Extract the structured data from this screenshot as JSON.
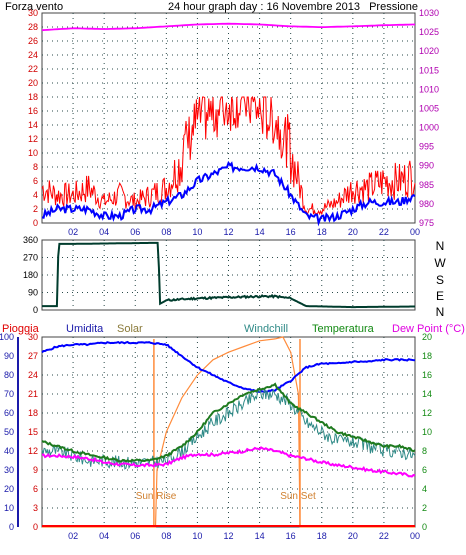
{
  "colors": {
    "wind": "#ff0000",
    "gust": "#ff0000",
    "avg": "#0000ff",
    "pressure": "#ff00ff",
    "direction": "#003c2d",
    "humidity": "#0000ff",
    "solar": "#ff8c3c",
    "windchill": "#2f8a87",
    "temperature": "#1e7a1e",
    "dewpoint": "#ff00ff",
    "rain": "#ff0000",
    "grid": "#2a4a4a",
    "axis_blue": "#1a1aaa",
    "axis_purple": "#b000b0",
    "axis_red": "#d00000",
    "axis_green": "#138a13",
    "time_axis": "#1a1aaa"
  },
  "panel1": {
    "left_title": "Forza vento",
    "center_title": "24 hour graph day : 16 Novembre 2013",
    "right_title": "Pressione",
    "left_ticks": [
      "0",
      "2",
      "4",
      "6",
      "8",
      "10",
      "12",
      "14",
      "16",
      "18",
      "20",
      "22",
      "24",
      "26",
      "28",
      "30"
    ],
    "right_ticks": [
      "975",
      "980",
      "985",
      "990",
      "995",
      "1000",
      "1005",
      "1010",
      "1015",
      "1020",
      "1025",
      "1030"
    ]
  },
  "panel2": {
    "left_ticks": [
      "0",
      "90",
      "180",
      "270",
      "360"
    ],
    "compass": [
      "N",
      "W",
      "S",
      "E",
      "N"
    ]
  },
  "panel3": {
    "legend": {
      "pioggia": "Pioggia",
      "umidita": "Umidita",
      "solar": "Solar",
      "windchill": "Windchill",
      "temperatura": "Temperatura",
      "dewpoint": "Dew Point (°C)"
    },
    "left_humidity_ticks": [
      "0",
      "10",
      "20",
      "30",
      "40",
      "50",
      "60",
      "70",
      "80",
      "90",
      "100"
    ],
    "left_rain_ticks": [
      "0",
      "3",
      "6",
      "9",
      "12",
      "15",
      "18",
      "21",
      "24",
      "27",
      "30"
    ],
    "right_ticks": [
      "0",
      "2",
      "4",
      "6",
      "8",
      "10",
      "12",
      "14",
      "16",
      "18",
      "20"
    ],
    "sunrise": "Sun Rise",
    "sunset": "Sun Set"
  },
  "time_ticks": [
    "02",
    "04",
    "06",
    "08",
    "10",
    "12",
    "14",
    "16",
    "18",
    "20",
    "22",
    "00"
  ],
  "chart_data": [
    {
      "type": "line",
      "title": "24 hour graph day : 16 Novembre 2013",
      "ylabel": "Forza vento",
      "y2label": "Pressione",
      "xlim": [
        0,
        24
      ],
      "ylim": [
        0,
        30
      ],
      "y2lim": [
        975,
        1030
      ],
      "series": [
        {
          "name": "gust",
          "x": [
            0,
            1,
            2,
            3,
            4,
            5,
            6,
            7,
            8,
            9,
            10,
            11,
            12,
            13,
            14,
            15,
            16,
            17,
            18,
            19,
            20,
            21,
            22,
            23,
            24
          ],
          "values": [
            5,
            4,
            4,
            5,
            3,
            4,
            3,
            4,
            5,
            9,
            14,
            15,
            16,
            17,
            15,
            14,
            10,
            2,
            2,
            3,
            5,
            5,
            6,
            6,
            7
          ]
        },
        {
          "name": "avg",
          "x": [
            0,
            1,
            2,
            3,
            4,
            5,
            6,
            7,
            8,
            9,
            10,
            11,
            12,
            13,
            14,
            15,
            16,
            17,
            18,
            19,
            20,
            21,
            22,
            23,
            24
          ],
          "values": [
            1,
            2,
            2,
            2,
            1,
            1,
            2,
            2,
            3,
            4,
            6,
            7,
            8,
            8,
            8,
            7,
            4,
            1,
            0.5,
            1,
            2,
            3,
            3,
            3,
            4
          ]
        },
        {
          "name": "Pressione",
          "x": [
            0,
            2,
            4,
            6,
            8,
            10,
            12,
            14,
            16,
            18,
            20,
            22,
            24
          ],
          "values": [
            1025.5,
            1026,
            1025.8,
            1026,
            1026.5,
            1027,
            1027.2,
            1027,
            1026.5,
            1026.3,
            1026.5,
            1026.8,
            1027
          ]
        }
      ]
    },
    {
      "type": "line",
      "ylabel": "wind direction",
      "xlim": [
        0,
        24
      ],
      "ylim": [
        0,
        360
      ],
      "series": [
        {
          "name": "direction",
          "x": [
            0,
            1,
            1.05,
            2,
            4,
            7,
            7.5,
            7.55,
            8,
            10,
            12,
            14,
            15,
            16,
            17,
            20,
            24
          ],
          "values": [
            20,
            20,
            340,
            340,
            342,
            345,
            345,
            30,
            50,
            60,
            65,
            70,
            70,
            60,
            20,
            15,
            18
          ]
        }
      ]
    },
    {
      "type": "line",
      "xlim": [
        0,
        24
      ],
      "ylim": [
        0,
        100
      ],
      "y2lim": [
        0,
        20
      ],
      "series": [
        {
          "name": "Umidita",
          "x": [
            0,
            1,
            2,
            3,
            4,
            5,
            6,
            7,
            8,
            9,
            10,
            11,
            12,
            13,
            14,
            15,
            16,
            17,
            18,
            19,
            20,
            21,
            22,
            23,
            24
          ],
          "values": [
            92,
            95,
            96,
            96,
            97,
            97,
            97,
            97,
            96,
            90,
            84,
            80,
            76,
            73,
            71,
            72,
            77,
            84,
            86,
            86,
            87,
            87,
            88,
            88,
            88
          ]
        },
        {
          "name": "Solar",
          "x": [
            0,
            7.2,
            7.3,
            7.4,
            8,
            9,
            10,
            11,
            12,
            13,
            14,
            15,
            15.5,
            16,
            16.5,
            16.6,
            24
          ],
          "values": [
            0,
            0,
            0,
            30,
            50,
            68,
            80,
            88,
            92,
            95,
            98,
            99,
            100,
            92,
            70,
            0,
            0
          ]
        },
        {
          "name": "Temperatura",
          "x": [
            0,
            1,
            2,
            3,
            4,
            5,
            6,
            7,
            8,
            9,
            10,
            11,
            12,
            13,
            14,
            15,
            16,
            17,
            18,
            19,
            20,
            21,
            22,
            23,
            24
          ],
          "values": [
            9,
            8.5,
            8,
            7.6,
            7.3,
            7,
            7,
            7,
            7.5,
            8.5,
            10,
            12,
            13,
            14,
            14.5,
            15,
            13,
            12,
            11,
            10,
            9.5,
            9,
            8.5,
            8.5,
            8
          ]
        },
        {
          "name": "Windchill",
          "x": [
            0,
            1,
            2,
            3,
            4,
            5,
            6,
            7,
            8,
            9,
            10,
            11,
            12,
            13,
            14,
            15,
            16,
            17,
            18,
            19,
            20,
            21,
            22,
            23,
            24
          ],
          "values": [
            8,
            8,
            7.5,
            7,
            7,
            6.8,
            6.8,
            6.8,
            7,
            8,
            9.5,
            11,
            12,
            13,
            14,
            14,
            13,
            11,
            10,
            9,
            9,
            8.5,
            8,
            8,
            7.5
          ]
        },
        {
          "name": "Dew Point (°C)",
          "x": [
            0,
            1,
            2,
            3,
            4,
            5,
            6,
            7,
            8,
            9,
            10,
            11,
            12,
            13,
            14,
            15,
            16,
            17,
            18,
            19,
            20,
            21,
            22,
            23,
            24
          ],
          "values": [
            7.5,
            7.5,
            7.4,
            7.2,
            6.8,
            6.6,
            6.5,
            6.5,
            6.6,
            7.3,
            7.7,
            7.6,
            7.8,
            8,
            8.3,
            8,
            7.5,
            7.2,
            6.8,
            6.5,
            6.3,
            6,
            5.8,
            5.6,
            5.4
          ]
        },
        {
          "name": "Pioggia",
          "x": [
            0,
            24
          ],
          "values": [
            0,
            0
          ]
        }
      ]
    }
  ]
}
